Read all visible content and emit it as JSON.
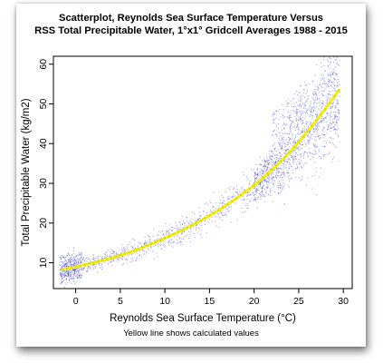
{
  "chart_data": {
    "type": "scatter",
    "title": "Scatterplot, Reynolds Sea Surface Temperature Versus",
    "subtitle": "RSS Total Precipitable Water, 1°x1° Gridcell Averages 1988 - 2015",
    "xlabel": "Reynolds Sea Surface Temperature (°C)",
    "ylabel": "Total Precipitable Water (kg/m2)",
    "note": "Yellow line shows calculated values",
    "xlim": [
      -2.5,
      31
    ],
    "ylim": [
      3.5,
      62
    ],
    "xticks": [
      0,
      5,
      10,
      15,
      20,
      25,
      30
    ],
    "yticks": [
      10,
      20,
      30,
      40,
      50,
      60
    ],
    "grid": false,
    "colors": {
      "points": "#2f2fd8",
      "fit_line": "#f2ee1a",
      "fit_dots": "#d9d900"
    },
    "series": [
      {
        "name": "Yellow line shows calculated values",
        "kind": "line",
        "x": [
          -1.5,
          -1,
          0,
          1,
          2,
          3,
          4,
          5,
          6,
          7,
          8,
          9,
          10,
          11,
          12,
          13,
          14,
          15,
          16,
          17,
          18,
          19,
          20,
          21,
          22,
          23,
          24,
          25,
          26,
          27,
          28,
          29,
          29.5
        ],
        "y": [
          8.3,
          8.5,
          9.0,
          9.5,
          10.0,
          10.6,
          11.2,
          11.9,
          12.6,
          13.4,
          14.3,
          15.2,
          16.2,
          17.2,
          18.3,
          19.4,
          20.6,
          21.9,
          23.2,
          24.7,
          26.2,
          27.8,
          29.5,
          31.4,
          33.4,
          35.6,
          37.9,
          40.4,
          43.1,
          45.9,
          48.8,
          51.9,
          53.5
        ]
      }
    ]
  }
}
